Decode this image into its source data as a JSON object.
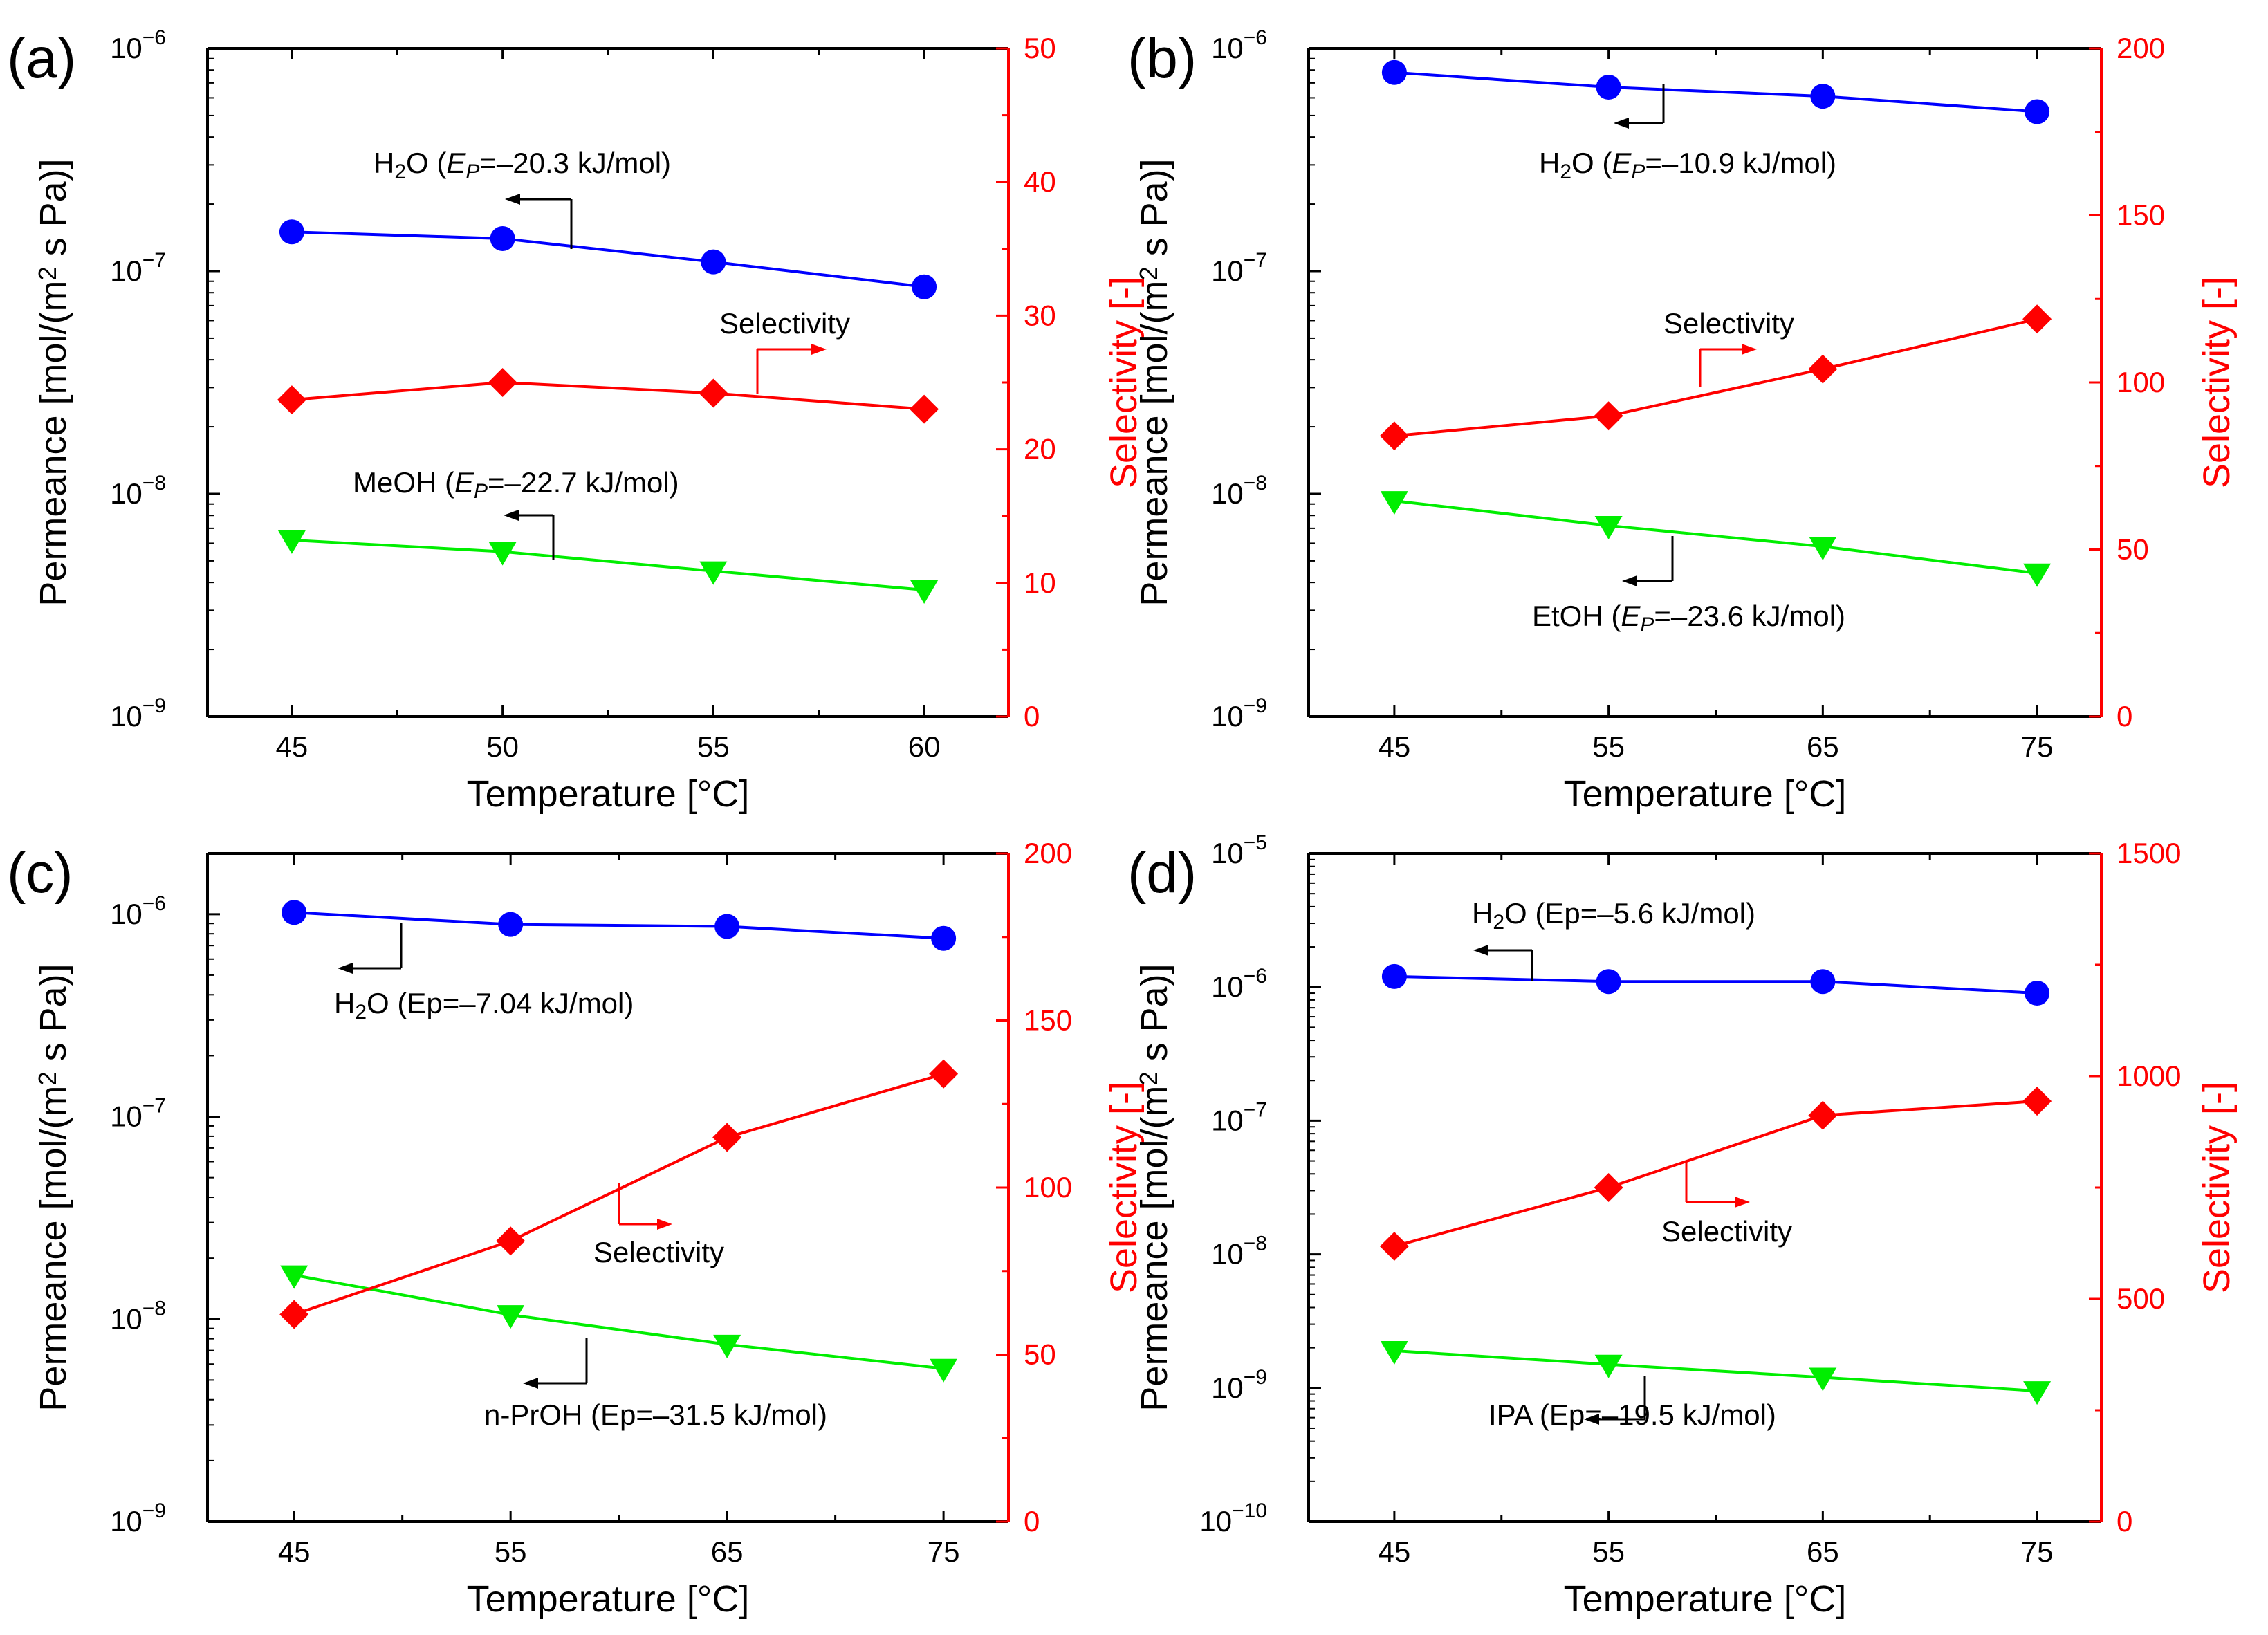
{
  "chart_data": [
    {
      "type": "line",
      "panel_label": "(a)",
      "xlabel": "Temperature [°C]",
      "ylabel_left": "Permeance [mol/(m2 s Pa)]",
      "ylabel_right": "Selectivity [-]",
      "x_ticks": [
        45,
        50,
        55,
        60
      ],
      "xlim": [
        43,
        62
      ],
      "y_left_scale": "log",
      "y_left_exponents": [
        -9,
        -8,
        -7,
        -6
      ],
      "y_left_lim_log10": [
        -9,
        -6
      ],
      "y_right_ticks": [
        0,
        10,
        20,
        30,
        40,
        50
      ],
      "y_right_lim": [
        0,
        50
      ],
      "series": [
        {
          "name": "H2O (EP=–20.3 kJ/mol)",
          "axis": "left",
          "color": "#0000ff",
          "marker": "circle",
          "x": [
            45,
            50,
            55,
            60
          ],
          "y": [
            1.5e-07,
            1.4e-07,
            1.1e-07,
            8.5e-08
          ]
        },
        {
          "name": "MeOH (EP=–22.7 kJ/mol)",
          "axis": "left",
          "color": "#00ee00",
          "marker": "triangle-down",
          "x": [
            45,
            50,
            55,
            60
          ],
          "y": [
            6.2e-09,
            5.5e-09,
            4.5e-09,
            3.7e-09
          ]
        },
        {
          "name": "Selectivity",
          "axis": "right",
          "color": "#ff0000",
          "marker": "diamond",
          "x": [
            45,
            50,
            55,
            60
          ],
          "y": [
            23.7,
            25.0,
            24.2,
            23.0
          ]
        }
      ],
      "annotations": [
        {
          "kind": "sub",
          "before": "H",
          "sub": "2",
          "mid": "O (",
          "it": "E",
          "it_sub": "P",
          "after": "=–20.3 kJ/mol)"
        },
        {
          "kind": "plain",
          "text": "Selectivity"
        },
        {
          "kind": "sub",
          "before": "MeOH (",
          "sub": "",
          "mid": "",
          "it": "E",
          "it_sub": "P",
          "after": "=–22.7 kJ/mol)"
        }
      ]
    },
    {
      "type": "line",
      "panel_label": "(b)",
      "xlabel": "Temperature [°C]",
      "ylabel_left": "Permeance [mol/(m2 s Pa)]",
      "ylabel_right": "Selectivity [-]",
      "x_ticks": [
        45,
        55,
        65,
        75
      ],
      "xlim": [
        41,
        78
      ],
      "y_left_scale": "log",
      "y_left_exponents": [
        -9,
        -8,
        -7,
        -6
      ],
      "y_left_lim_log10": [
        -9,
        -6
      ],
      "y_right_ticks": [
        0,
        50,
        100,
        150,
        200
      ],
      "y_right_lim": [
        0,
        200
      ],
      "series": [
        {
          "name": "H2O (EP=–10.9 kJ/mol)",
          "axis": "left",
          "color": "#0000ff",
          "marker": "circle",
          "x": [
            45,
            55,
            65,
            75
          ],
          "y": [
            7.8e-07,
            6.7e-07,
            6.1e-07,
            5.2e-07
          ]
        },
        {
          "name": "EtOH (EP=–23.6 kJ/mol)",
          "axis": "left",
          "color": "#00ee00",
          "marker": "triangle-down",
          "x": [
            45,
            55,
            65,
            75
          ],
          "y": [
            9.3e-09,
            7.2e-09,
            5.8e-09,
            4.4e-09
          ]
        },
        {
          "name": "Selectivity",
          "axis": "right",
          "color": "#ff0000",
          "marker": "diamond",
          "x": [
            45,
            55,
            65,
            75
          ],
          "y": [
            84,
            90,
            104,
            119
          ]
        }
      ],
      "annotations": [
        {
          "kind": "sub",
          "before": "H",
          "sub": "2",
          "mid": "O (",
          "it": "E",
          "it_sub": "P",
          "after": "=–10.9 kJ/mol)"
        },
        {
          "kind": "plain",
          "text": "Selectivity"
        },
        {
          "kind": "sub",
          "before": "EtOH (",
          "sub": "",
          "mid": "",
          "it": "E",
          "it_sub": "P",
          "after": "=–23.6 kJ/mol)"
        }
      ]
    },
    {
      "type": "line",
      "panel_label": "(c)",
      "xlabel": "Temperature [°C]",
      "ylabel_left": "Permeance [mol/(m2 s Pa)]",
      "ylabel_right": "Selectivity [-]",
      "x_ticks": [
        45,
        55,
        65,
        75
      ],
      "xlim": [
        41,
        78
      ],
      "y_left_scale": "log",
      "y_left_exponents": [
        -9,
        -8,
        -7,
        -6
      ],
      "y_left_lim_log10": [
        -9,
        -5.7
      ],
      "y_right_ticks": [
        0,
        50,
        100,
        150,
        200
      ],
      "y_right_lim": [
        0,
        200
      ],
      "series": [
        {
          "name": "H2O (Ep=–7.04 kJ/mol)",
          "axis": "left",
          "color": "#0000ff",
          "marker": "circle",
          "x": [
            45,
            55,
            65,
            75
          ],
          "y": [
            1.02e-06,
            8.9e-07,
            8.7e-07,
            7.6e-07
          ]
        },
        {
          "name": "n-PrOH (Ep=–31.5 kJ/mol)",
          "axis": "left",
          "color": "#00ee00",
          "marker": "triangle-down",
          "x": [
            45,
            55,
            65,
            75
          ],
          "y": [
            1.65e-08,
            1.05e-08,
            7.5e-09,
            5.7e-09
          ]
        },
        {
          "name": "Selectivity",
          "axis": "right",
          "color": "#ff0000",
          "marker": "diamond",
          "x": [
            45,
            55,
            65,
            75
          ],
          "y": [
            62,
            84,
            115,
            134
          ]
        }
      ],
      "annotations": [
        {
          "kind": "sub",
          "before": "H",
          "sub": "2",
          "mid": "O (Ep=–7.04 kJ/mol)",
          "it": "",
          "it_sub": "",
          "after": ""
        },
        {
          "kind": "plain",
          "text": "Selectivity"
        },
        {
          "kind": "plain",
          "text": "n-PrOH (Ep=–31.5 kJ/mol)"
        }
      ]
    },
    {
      "type": "line",
      "panel_label": "(d)",
      "xlabel": "Temperature [°C]",
      "ylabel_left": "Permeance [mol/(m2 s Pa)]",
      "ylabel_right": "Selectivity [-]",
      "x_ticks": [
        45,
        55,
        65,
        75
      ],
      "xlim": [
        41,
        78
      ],
      "y_left_scale": "log",
      "y_left_exponents": [
        -10,
        -9,
        -8,
        -7,
        -6,
        -5
      ],
      "y_left_lim_log10": [
        -10,
        -5
      ],
      "y_right_ticks": [
        0,
        500,
        1000,
        1500
      ],
      "y_right_lim": [
        0,
        1500
      ],
      "series": [
        {
          "name": "H2O (Ep=–5.6 kJ/mol)",
          "axis": "left",
          "color": "#0000ff",
          "marker": "circle",
          "x": [
            45,
            55,
            65,
            75
          ],
          "y": [
            1.2e-06,
            1.1e-06,
            1.1e-06,
            9e-07
          ]
        },
        {
          "name": "IPA (Ep=–19.5 kJ/mol)",
          "axis": "left",
          "color": "#00ee00",
          "marker": "triangle-down",
          "x": [
            45,
            55,
            65,
            75
          ],
          "y": [
            1.9e-09,
            1.5e-09,
            1.2e-09,
            9.5e-10
          ]
        },
        {
          "name": "Selectivity",
          "axis": "right",
          "color": "#ff0000",
          "marker": "diamond",
          "x": [
            45,
            55,
            65,
            75
          ],
          "y": [
            618,
            750,
            912,
            944
          ]
        }
      ],
      "annotations": [
        {
          "kind": "sub",
          "before": "H",
          "sub": "2",
          "mid": "O (Ep=–5.6 kJ/mol)",
          "it": "",
          "it_sub": "",
          "after": ""
        },
        {
          "kind": "plain",
          "text": "Selectivity"
        },
        {
          "kind": "plain",
          "text": "IPA (Ep=–19.5 kJ/mol)"
        }
      ]
    }
  ]
}
